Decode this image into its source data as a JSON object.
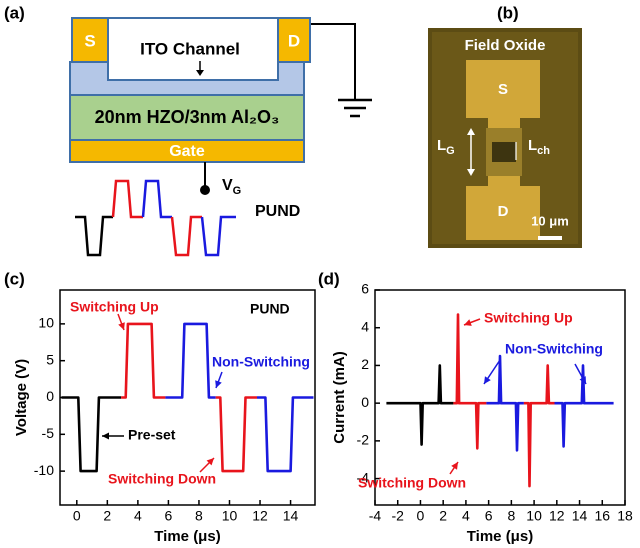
{
  "device_diagram": {
    "label": "(a)",
    "source": "S",
    "drain": "D",
    "channel": "ITO Channel",
    "stack": "20nm HZO/3nm Al₂O₃",
    "gate": "Gate",
    "gate_voltage": {
      "main": "V",
      "sub": "G"
    },
    "waveform": "PUND"
  },
  "micrograph": {
    "label": "(b)",
    "title": "Field Oxide",
    "source": "S",
    "drain": "D",
    "gate_length": {
      "main": "L",
      "sub": "G"
    },
    "channel_length": {
      "main": "L",
      "sub": "ch"
    },
    "scale_bar": "10 μm"
  },
  "chart_data": [
    {
      "type": "line",
      "label": "(c)",
      "x_label": "Time (μs)",
      "y_label": "Voltage (V)",
      "xlim": [
        -1.1,
        15.6
      ],
      "ylim": [
        -14.6,
        14.6
      ],
      "xticks": [
        0,
        2,
        4,
        6,
        8,
        10,
        12,
        14
      ],
      "yticks": [
        -10,
        -5,
        0,
        5,
        10
      ],
      "series": [
        {
          "color": "#000000",
          "x": [
            -1.0,
            0.1,
            0.25,
            1.3,
            1.45,
            2.9
          ],
          "values": [
            0,
            0,
            -10,
            -10,
            0,
            0
          ]
        },
        {
          "color": "#e8141c",
          "x": [
            2.9,
            3.2,
            3.35,
            4.9,
            5.05,
            5.8
          ],
          "values": [
            0,
            0,
            10,
            10,
            0,
            0
          ]
        },
        {
          "color": "#1a1adf",
          "x": [
            5.8,
            6.9,
            7.05,
            8.5,
            8.65,
            9.1
          ],
          "values": [
            0,
            0,
            10,
            10,
            0,
            0
          ]
        },
        {
          "color": "#e8141c",
          "x": [
            9.1,
            9.4,
            9.55,
            10.9,
            11.05,
            11.8
          ],
          "values": [
            0,
            0,
            -10,
            -10,
            0,
            0
          ]
        },
        {
          "color": "#1a1adf",
          "x": [
            11.8,
            12.35,
            12.5,
            14.0,
            14.15,
            15.5
          ],
          "values": [
            0,
            0,
            -10,
            -10,
            0,
            0
          ]
        }
      ],
      "annotations": [
        {
          "text": "Switching Up",
          "color": "#e8141c"
        },
        {
          "text": "PUND",
          "color": "#000000"
        },
        {
          "text": "Non-Switching",
          "color": "#1a1adf"
        },
        {
          "text": "Pre-set",
          "color": "#000000"
        },
        {
          "text": "Switching Down",
          "color": "#e8141c"
        }
      ]
    },
    {
      "type": "line",
      "label": "(d)",
      "x_label": "Time (μs)",
      "y_label": "Current (mA)",
      "xlim": [
        -4,
        18
      ],
      "ylim": [
        -5.4,
        6
      ],
      "xticks": [
        -4,
        -2,
        0,
        2,
        4,
        6,
        8,
        10,
        12,
        14,
        16,
        18
      ],
      "yticks": [
        -4,
        -2,
        0,
        2,
        4,
        6
      ],
      "series": [
        {
          "color": "#000000",
          "x": [
            -3.0,
            0.0,
            0.1,
            0.2,
            1.6,
            1.7,
            1.8,
            2.9
          ],
          "values": [
            0,
            0,
            -2.2,
            0,
            0,
            2.0,
            0,
            0
          ]
        },
        {
          "color": "#e8141c",
          "x": [
            2.9,
            3.2,
            3.3,
            3.4,
            4.9,
            5.0,
            5.1,
            5.8
          ],
          "values": [
            0,
            0,
            4.7,
            0,
            0,
            -2.4,
            0,
            0
          ]
        },
        {
          "color": "#1a1adf",
          "x": [
            5.8,
            6.9,
            7.0,
            7.1,
            8.4,
            8.5,
            8.6,
            9.1
          ],
          "values": [
            0,
            0,
            2.5,
            0,
            0,
            -2.5,
            0,
            0
          ]
        },
        {
          "color": "#e8141c",
          "x": [
            9.1,
            9.5,
            9.6,
            9.7,
            11.1,
            11.2,
            11.3,
            11.8
          ],
          "values": [
            0,
            0,
            -4.4,
            0,
            0,
            2.0,
            0,
            0
          ]
        },
        {
          "color": "#1a1adf",
          "x": [
            11.8,
            12.5,
            12.6,
            12.7,
            14.2,
            14.3,
            14.4,
            17.0
          ],
          "values": [
            0,
            0,
            -2.3,
            0,
            0,
            2.0,
            0,
            0
          ]
        }
      ],
      "annotations": [
        {
          "text": "Switching Up",
          "color": "#e8141c"
        },
        {
          "text": "Non-Switching",
          "color": "#1a1adf"
        },
        {
          "text": "Switching Down",
          "color": "#e8141c"
        }
      ]
    }
  ]
}
